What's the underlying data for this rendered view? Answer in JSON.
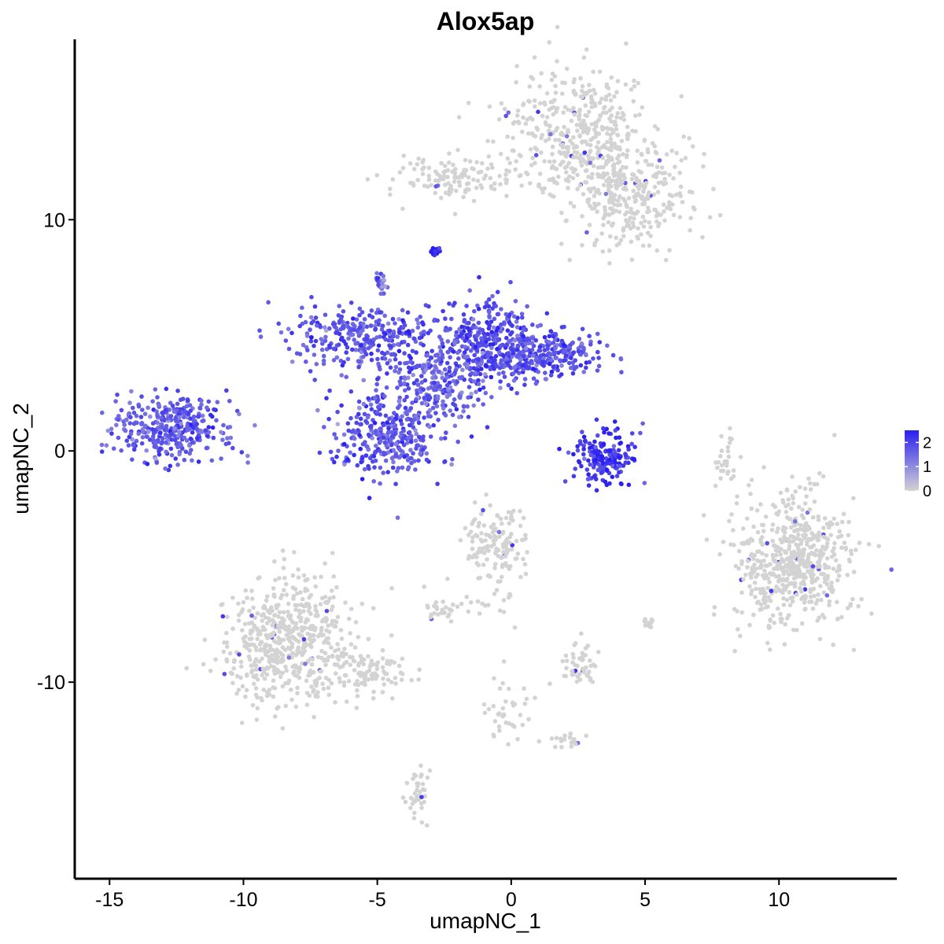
{
  "chart_data": {
    "type": "scatter",
    "title": "Alox5ap",
    "xlabel": "umapNC_1",
    "ylabel": "umapNC_2",
    "xlim": [
      -16.3,
      14.4
    ],
    "ylim": [
      -18.5,
      17.8
    ],
    "x_ticks": [
      -15,
      -10,
      -5,
      0,
      5,
      10
    ],
    "y_ticks": [
      -10,
      0,
      10
    ],
    "x_tick_labels": [
      "-15",
      "-10",
      "-5",
      "0",
      "5",
      "10"
    ],
    "y_tick_labels": [
      "-10",
      "0",
      "10"
    ],
    "grid": false,
    "color_scale": {
      "low_color": "#d3d3d3",
      "high_color": "#2a1ff0",
      "min": 0,
      "max": 2.5,
      "ticks": [
        0,
        1,
        2
      ],
      "tick_labels": [
        "0",
        "1",
        "2"
      ],
      "legend_position": "right"
    },
    "clusters": [
      {
        "cx": 2.6,
        "cy": 13.8,
        "sx": 1.3,
        "sy": 1.5,
        "n": 420,
        "expr": 0.05
      },
      {
        "cx": 4.6,
        "cy": 11.0,
        "sx": 1.1,
        "sy": 1.2,
        "n": 300,
        "expr": 0.07
      },
      {
        "cx": -2.0,
        "cy": 11.8,
        "sx": 1.2,
        "sy": 0.45,
        "n": 130,
        "expr": 0.05
      },
      {
        "cx": -12.7,
        "cy": 1.0,
        "sx": 1.1,
        "sy": 0.65,
        "n": 360,
        "expr": 1.7
      },
      {
        "cx": -4.5,
        "cy": 0.6,
        "sx": 1.1,
        "sy": 0.9,
        "n": 320,
        "expr": 1.75
      },
      {
        "cx": -5.5,
        "cy": 4.9,
        "sx": 1.4,
        "sy": 0.75,
        "n": 300,
        "expr": 1.8
      },
      {
        "cx": -1.0,
        "cy": 4.6,
        "sx": 1.0,
        "sy": 1.0,
        "n": 340,
        "expr": 1.85
      },
      {
        "cx": 1.3,
        "cy": 4.1,
        "sx": 1.1,
        "sy": 0.5,
        "n": 260,
        "expr": 1.8
      },
      {
        "cx": -2.9,
        "cy": 2.8,
        "sx": 1.0,
        "sy": 0.8,
        "n": 200,
        "expr": 1.6
      },
      {
        "cx": 3.5,
        "cy": -0.3,
        "sx": 0.6,
        "sy": 0.55,
        "n": 170,
        "expr": 2.2
      },
      {
        "cx": -4.9,
        "cy": 7.3,
        "sx": 0.15,
        "sy": 0.2,
        "n": 22,
        "expr": 1.6
      },
      {
        "cx": -2.9,
        "cy": 8.6,
        "sx": 0.1,
        "sy": 0.12,
        "n": 16,
        "expr": 2.45
      },
      {
        "cx": 10.6,
        "cy": -4.8,
        "sx": 1.15,
        "sy": 1.45,
        "n": 600,
        "expr": 0.05
      },
      {
        "cx": -8.3,
        "cy": -8.2,
        "sx": 1.2,
        "sy": 1.3,
        "n": 560,
        "expr": 0.05
      },
      {
        "cx": -5.4,
        "cy": -9.7,
        "sx": 0.8,
        "sy": 0.4,
        "n": 90,
        "expr": 0.05
      },
      {
        "cx": -0.6,
        "cy": -4.0,
        "sx": 0.7,
        "sy": 0.8,
        "n": 130,
        "expr": 0.1
      },
      {
        "cx": 2.5,
        "cy": -9.3,
        "sx": 0.35,
        "sy": 0.45,
        "n": 50,
        "expr": 0.2
      },
      {
        "cx": -2.6,
        "cy": -6.9,
        "sx": 0.25,
        "sy": 0.2,
        "n": 25,
        "expr": 0.1
      },
      {
        "cx": 8.1,
        "cy": -0.3,
        "sx": 0.2,
        "sy": 0.6,
        "n": 30,
        "expr": 0.03
      },
      {
        "cx": -3.5,
        "cy": -14.7,
        "sx": 0.2,
        "sy": 0.6,
        "n": 40,
        "expr": 0.05
      },
      {
        "cx": 0.0,
        "cy": -11.5,
        "sx": 0.5,
        "sy": 0.7,
        "n": 40,
        "expr": 0.05
      },
      {
        "cx": 2.2,
        "cy": -12.5,
        "sx": 0.25,
        "sy": 0.15,
        "n": 18,
        "expr": 0.03
      },
      {
        "cx": 5.1,
        "cy": -7.4,
        "sx": 0.1,
        "sy": 0.15,
        "n": 10,
        "expr": 0.1
      },
      {
        "cx": -1.2,
        "cy": -6.5,
        "sx": 0.8,
        "sy": 0.8,
        "n": 25,
        "expr": 0.03
      }
    ]
  }
}
